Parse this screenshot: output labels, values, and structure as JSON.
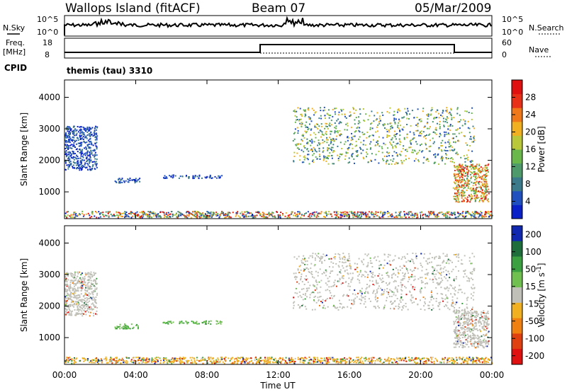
{
  "header": {
    "site": "Wallops Island (fitACF)",
    "beam": "Beam 07",
    "date": "05/Mar/2009"
  },
  "noise_panel": {
    "left_label": "N.Sky",
    "right_label": "N.Search",
    "left_ticks": [
      "10^5",
      "10^0"
    ],
    "right_ticks": [
      "10^5",
      "10^0"
    ]
  },
  "freq_panel": {
    "left_label_line1": "Freq.",
    "left_label_line2": "[MHz]",
    "left_ticks": [
      "18",
      "8"
    ],
    "right_label": "Nave",
    "right_ticks": [
      "60",
      "0"
    ]
  },
  "cpid": {
    "label": "CPID",
    "text": "themis (tau) 3310"
  },
  "colors": {
    "power": [
      "#0a20c8",
      "#2050c0",
      "#3a7a8a",
      "#4e9a6a",
      "#6ab84c",
      "#b8c838",
      "#f0b020",
      "#f07818",
      "#e83018",
      "#e01010"
    ],
    "velocity": [
      "#1028b0",
      "#1e6e3c",
      "#3aa040",
      "#70c050",
      "#c0c0b8",
      "#f0b020",
      "#f08010",
      "#e04010",
      "#e01010"
    ]
  },
  "chart_data": [
    {
      "type": "heatmap",
      "title": "",
      "xlabel": "",
      "ylabel": "Slant Range [km]",
      "x_ticks": [
        "00:00",
        "04:00",
        "08:00",
        "12:00",
        "16:00",
        "20:00",
        "00:00"
      ],
      "y_ticks": [
        1000,
        2000,
        3000,
        4000
      ],
      "ylim": [
        150,
        4550
      ],
      "colorbar": {
        "label": "Power [dB]",
        "ticks": [
          4,
          8,
          12,
          16,
          20,
          24,
          28
        ]
      },
      "regions": [
        {
          "t_start": 0.0,
          "t_end": 1.8,
          "range_start": 1700,
          "range_end": 3100,
          "level": "low"
        },
        {
          "t_start": 2.8,
          "t_end": 4.2,
          "range_start": 1300,
          "range_end": 1450,
          "level": "low"
        },
        {
          "t_start": 5.5,
          "t_end": 8.8,
          "range_start": 1450,
          "range_end": 1550,
          "level": "low"
        },
        {
          "t_start": 12.8,
          "t_end": 23.0,
          "range_start": 1900,
          "range_end": 3700,
          "level": "medium"
        },
        {
          "t_start": 21.8,
          "t_end": 23.8,
          "range_start": 700,
          "range_end": 1900,
          "level": "high"
        },
        {
          "t_start": 0.0,
          "t_end": 24.0,
          "range_start": 200,
          "range_end": 400,
          "level": "ground"
        }
      ]
    },
    {
      "type": "heatmap",
      "title": "",
      "xlabel": "Time UT",
      "ylabel": "Slant Range [km]",
      "x_ticks": [
        "00:00",
        "04:00",
        "08:00",
        "12:00",
        "16:00",
        "20:00",
        "00:00"
      ],
      "y_ticks": [
        1000,
        2000,
        3000,
        4000
      ],
      "ylim": [
        150,
        4550
      ],
      "colorbar": {
        "label": "Velocity [m s^-1]",
        "ticks": [
          200,
          100,
          50,
          15,
          -15,
          -50,
          -100,
          -200
        ]
      },
      "regions": [
        {
          "t_start": 0.0,
          "t_end": 1.8,
          "range_start": 1700,
          "range_end": 3100,
          "level": "slow"
        },
        {
          "t_start": 2.8,
          "t_end": 4.2,
          "range_start": 1300,
          "range_end": 1450,
          "level": "positive"
        },
        {
          "t_start": 5.5,
          "t_end": 8.8,
          "range_start": 1450,
          "range_end": 1550,
          "level": "positive"
        },
        {
          "t_start": 12.8,
          "t_end": 23.0,
          "range_start": 1900,
          "range_end": 3700,
          "level": "slow"
        },
        {
          "t_start": 21.8,
          "t_end": 23.8,
          "range_start": 700,
          "range_end": 1900,
          "level": "slow"
        },
        {
          "t_start": 0.0,
          "t_end": 24.0,
          "range_start": 200,
          "range_end": 400,
          "level": "ground"
        }
      ]
    }
  ]
}
